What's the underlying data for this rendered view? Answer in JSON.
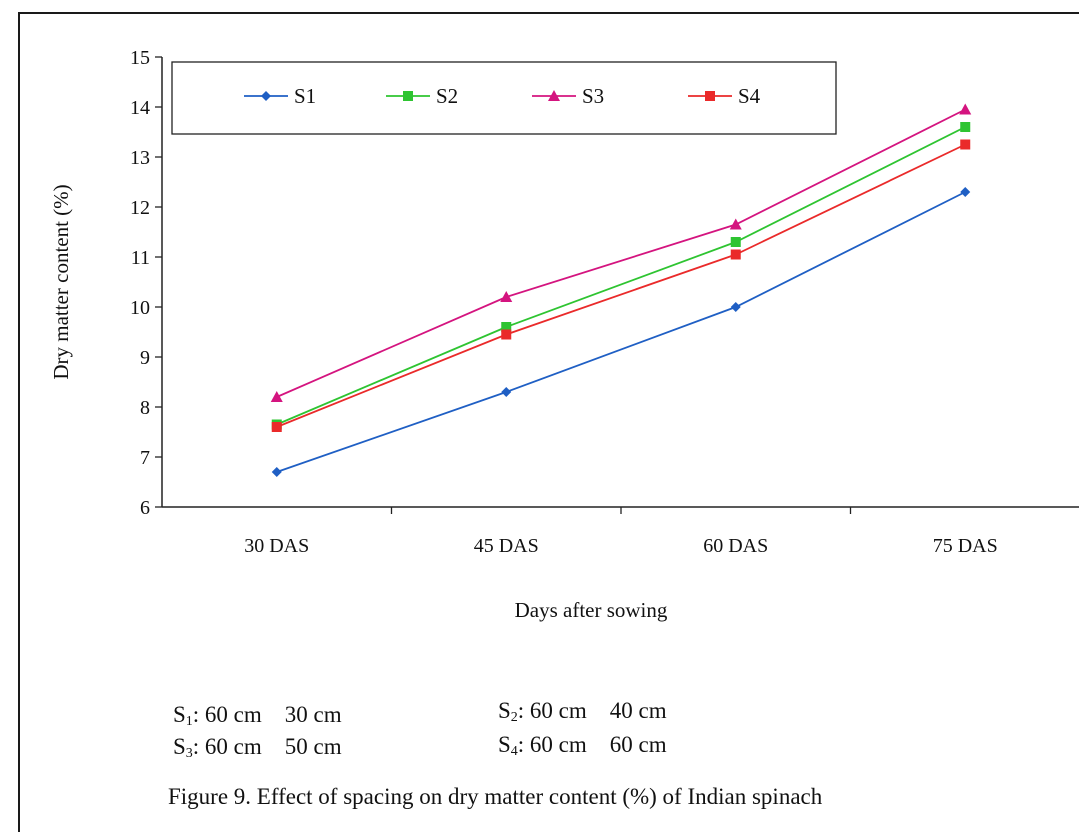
{
  "chart_data": {
    "type": "line",
    "categories": [
      "30 DAS",
      "45 DAS",
      "60 DAS",
      "75 DAS"
    ],
    "series": [
      {
        "name": "S1",
        "color": "#1f5fc4",
        "marker": "diamond",
        "values": [
          6.7,
          8.3,
          10.0,
          12.3
        ]
      },
      {
        "name": "S2",
        "color": "#2ec431",
        "marker": "square",
        "values": [
          7.65,
          9.6,
          11.3,
          13.6
        ]
      },
      {
        "name": "S3",
        "color": "#d4147f",
        "marker": "triangle",
        "values": [
          8.2,
          10.2,
          11.65,
          13.95
        ]
      },
      {
        "name": "S4",
        "color": "#ea2a2a",
        "marker": "square",
        "values": [
          7.6,
          9.45,
          11.05,
          13.25
        ]
      }
    ],
    "xlabel": "Days after sowing",
    "ylabel": "Dry matter content (%)",
    "ylim": [
      6,
      15
    ],
    "yticks": [
      "6",
      "7",
      "8",
      "9",
      "10",
      "11",
      "12",
      "13",
      "14",
      "15"
    ],
    "grid": false,
    "legend": "top, inside plot, single row"
  },
  "notes": [
    {
      "label": "S",
      "sub": "1",
      "text": ": 60 cm    30 cm"
    },
    {
      "label": "S",
      "sub": "2",
      "text": ": 60 cm    40 cm"
    },
    {
      "label": "S",
      "sub": "3",
      "text": ": 60 cm    50 cm"
    },
    {
      "label": "S",
      "sub": "4",
      "text": ": 60 cm    60 cm"
    }
  ],
  "caption": "Figure 9. Effect of spacing on dry matter content (%) of Indian spinach"
}
